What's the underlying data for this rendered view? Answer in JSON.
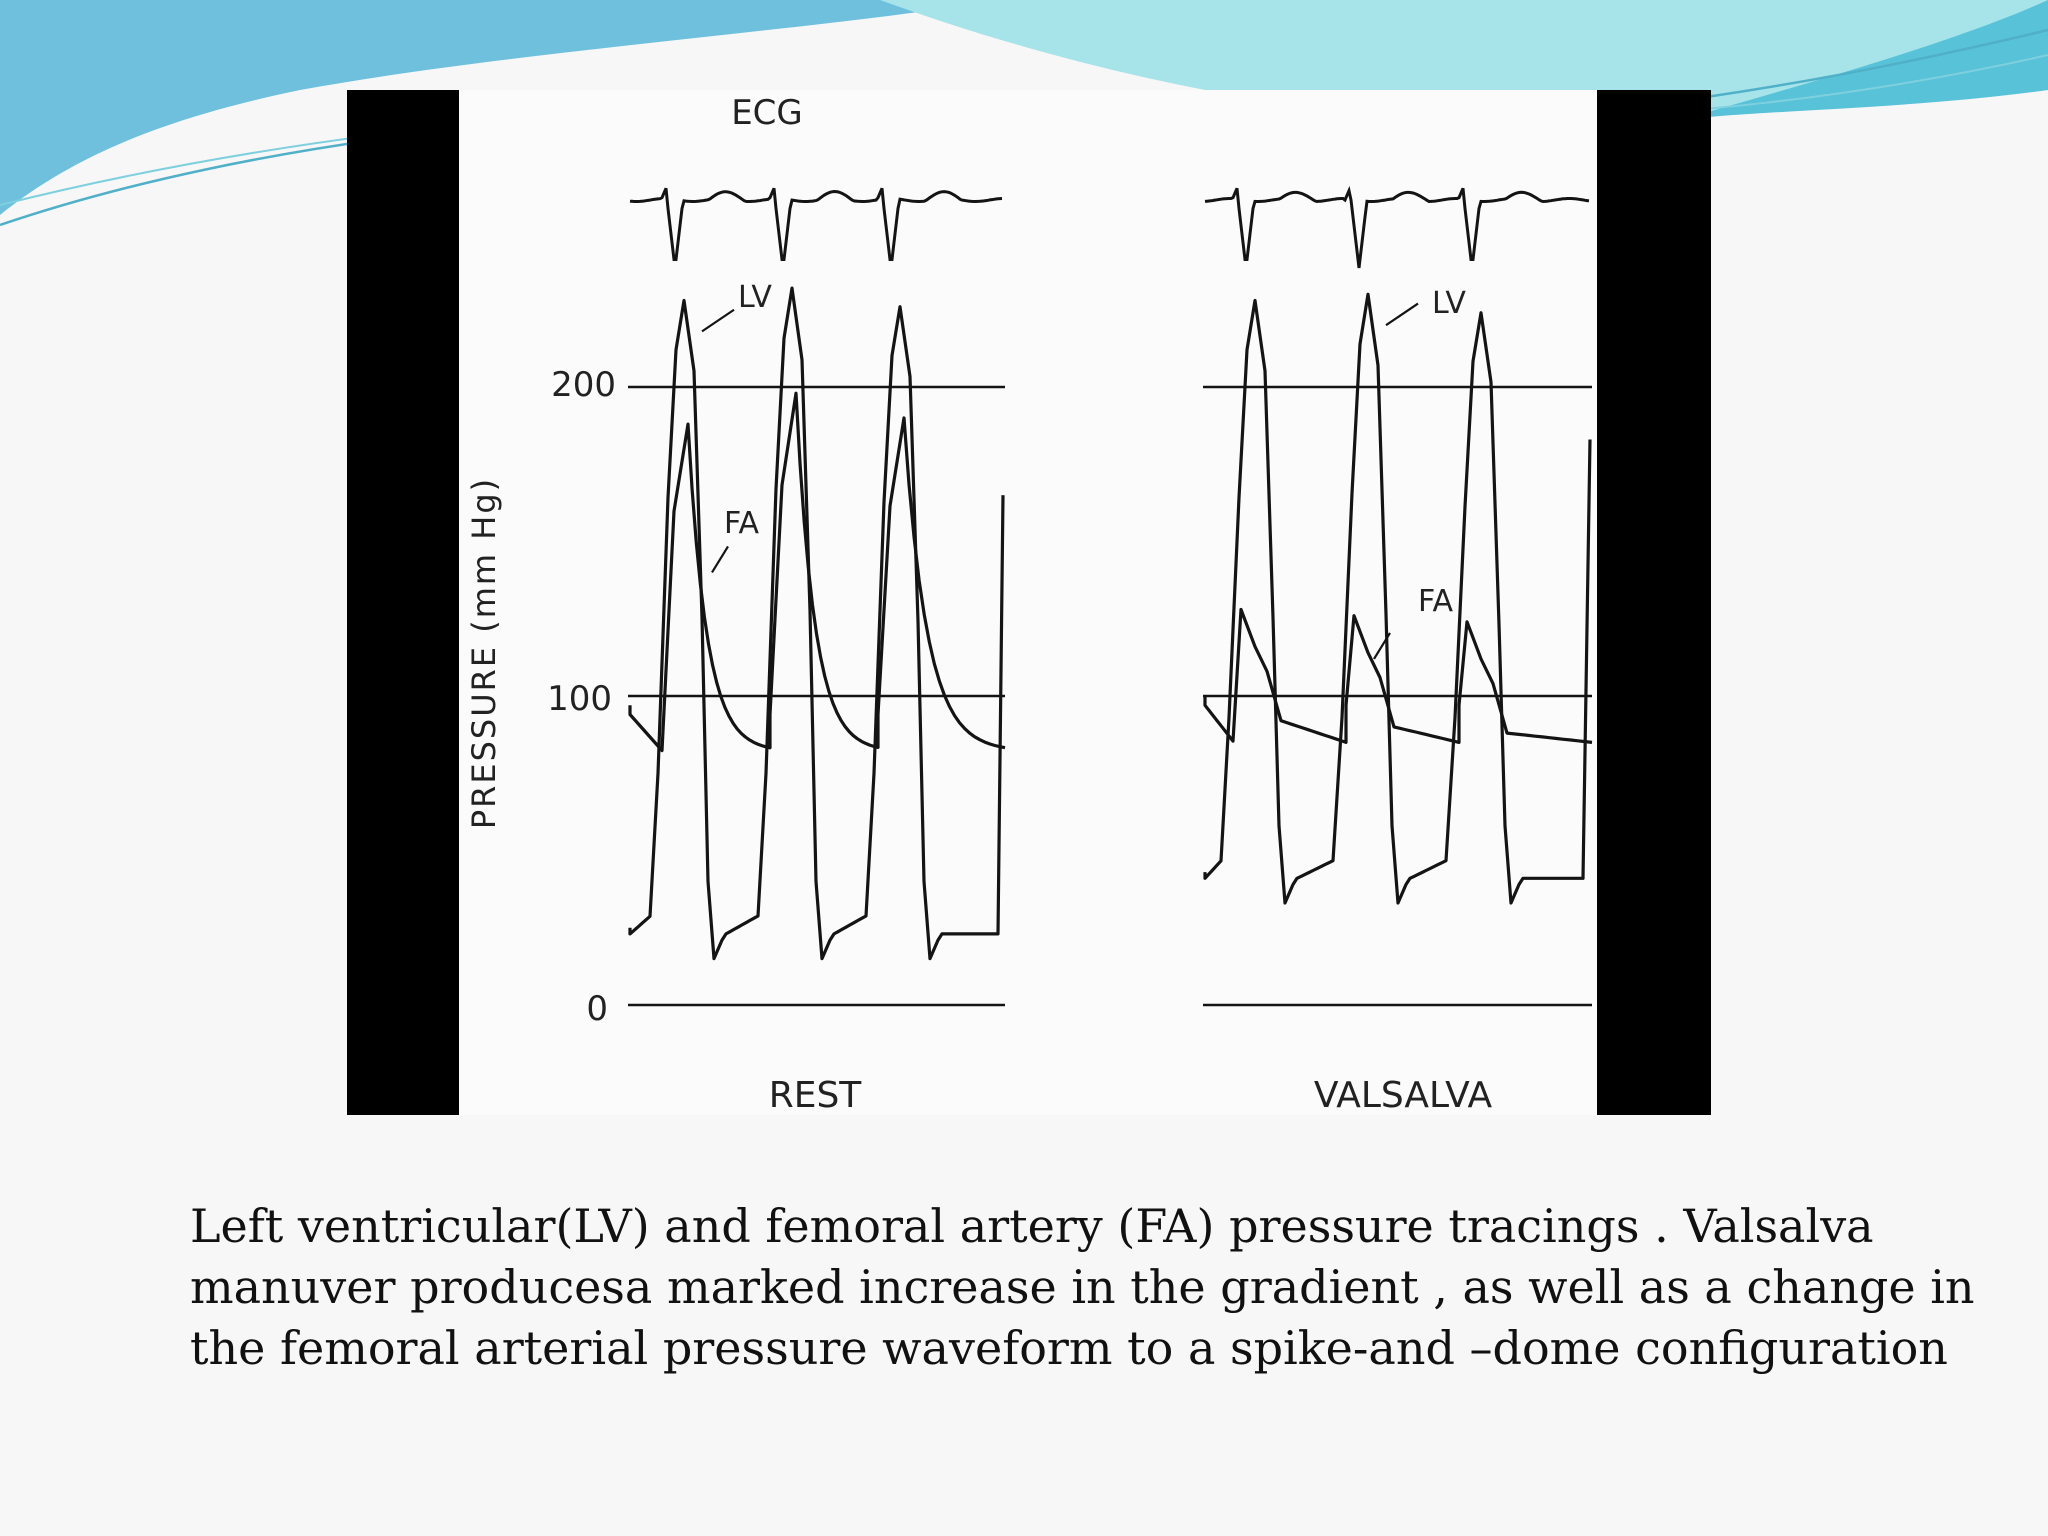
{
  "slide": {
    "caption_lines": [
      "Left ventricular(LV) and femoral artery (FA) pressure tracings . Valsalva",
      "manuver producesa marked increase in the gradient , as well as a change in",
      "the femoral arterial pressure waveform to a spike-and –dome configuration"
    ],
    "colors": {
      "background": "#f7f7f8",
      "wave_dark": "#5fb3d6",
      "wave_light": "#8fdde8",
      "trace": "#141414",
      "frame_bars": "#000000"
    }
  },
  "chart_data": {
    "type": "line",
    "title": "",
    "top_label": "ECG",
    "ylabel": "PRESSURE (mm Hg)",
    "ylim": [
      0,
      240
    ],
    "yticks": [
      0,
      100,
      200
    ],
    "ytick_labels": [
      "0",
      "100",
      "200"
    ],
    "reference_lines": [
      0,
      100,
      200
    ],
    "panels": [
      {
        "name": "REST",
        "beat_peaks": [
          {
            "LV": 228,
            "FA": 188
          },
          {
            "LV": 232,
            "FA": 198
          },
          {
            "LV": 226,
            "FA": 190
          }
        ],
        "LV_min": 15,
        "FA_min": 82,
        "annotations": [
          {
            "text": "LV",
            "points_to": "LV"
          },
          {
            "text": "FA",
            "points_to": "FA"
          }
        ]
      },
      {
        "name": "VALSALVA",
        "beat_peaks": [
          {
            "LV": 228,
            "FA": 128
          },
          {
            "LV": 230,
            "FA": 126
          },
          {
            "LV": 224,
            "FA": 124
          }
        ],
        "LV_min": 33,
        "FA_min": 85,
        "annotations": [
          {
            "text": "LV",
            "points_to": "LV"
          },
          {
            "text": "FA",
            "points_to": "FA"
          }
        ]
      }
    ],
    "series": [
      {
        "name": "LV"
      },
      {
        "name": "FA"
      },
      {
        "name": "ECG"
      }
    ]
  }
}
